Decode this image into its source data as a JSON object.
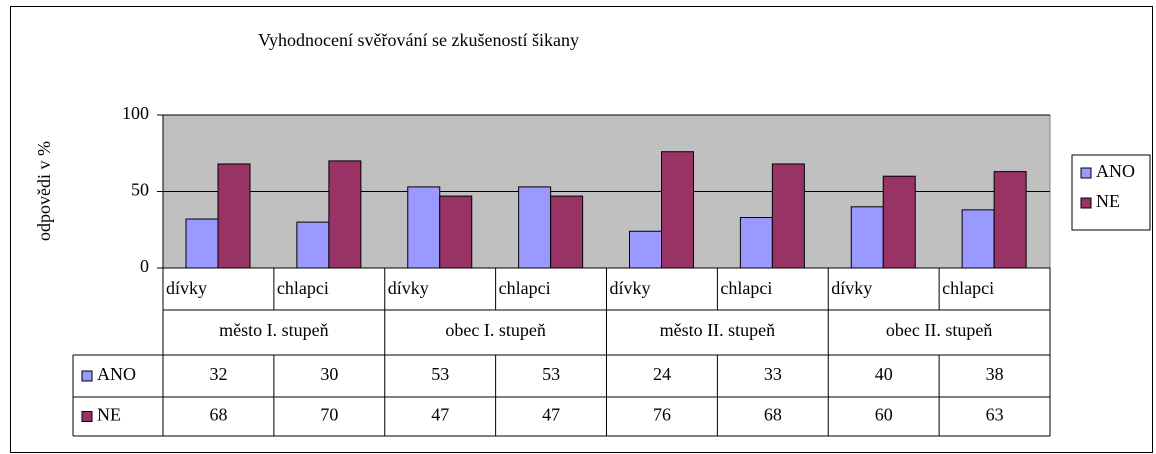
{
  "chart_data": {
    "type": "bar",
    "title": "Vyhodnocení svěřování se zkušeností šikany",
    "y_label": "odpovědi v %",
    "categories": [
      "dívky",
      "chlapci",
      "dívky",
      "chlapci",
      "dívky",
      "chlapci",
      "dívky",
      "chlapci"
    ],
    "groups": [
      "město I. stupeň",
      "obec I. stupeň",
      "město II. stupeň",
      "obec II. stupeň"
    ],
    "series": [
      {
        "name": "ANO",
        "color": "#9999ff",
        "values": [
          32,
          30,
          53,
          53,
          24,
          33,
          40,
          38
        ]
      },
      {
        "name": "NE",
        "color": "#993366",
        "values": [
          68,
          70,
          47,
          47,
          76,
          68,
          60,
          63
        ]
      }
    ],
    "ylim": [
      0,
      100
    ],
    "yticks": [
      0,
      50,
      100
    ],
    "grid": true,
    "plot_background": "#c0c0c0",
    "legend": "right"
  }
}
